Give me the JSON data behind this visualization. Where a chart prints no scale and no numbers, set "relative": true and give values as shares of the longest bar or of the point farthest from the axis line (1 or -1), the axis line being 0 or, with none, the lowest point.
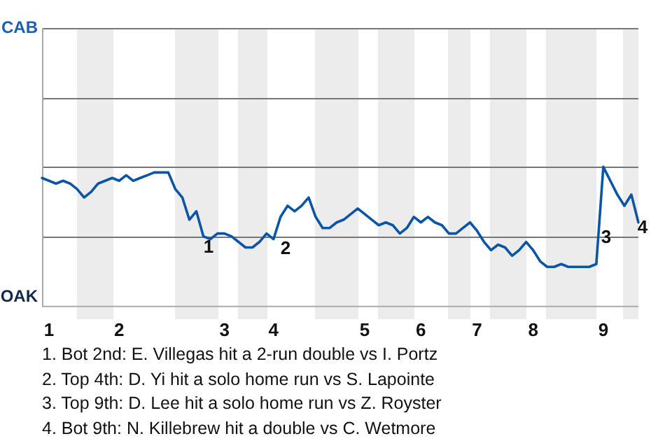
{
  "chart_data": {
    "type": "line",
    "relative": true,
    "categories": [
      null,
      "1",
      null,
      null,
      null,
      null,
      null,
      null,
      null,
      null,
      null,
      "2",
      null,
      null,
      null,
      null,
      null,
      null,
      null,
      null,
      null,
      null,
      null,
      null,
      null,
      null,
      "3",
      null,
      null,
      null,
      null,
      null,
      null,
      "4",
      null,
      null,
      null,
      null,
      null,
      null,
      null,
      null,
      null,
      null,
      null,
      null,
      "5",
      null,
      null,
      null,
      null,
      null,
      null,
      null,
      "6",
      null,
      null,
      null,
      null,
      null,
      null,
      null,
      "7",
      null,
      null,
      null,
      null,
      null,
      null,
      null,
      "8",
      null,
      null,
      null,
      null,
      null,
      null,
      null,
      null,
      null,
      "9",
      null,
      null,
      null,
      null,
      null
    ],
    "ref_lines": [
      {
        "axis": "y",
        "value": 0.5,
        "color": "#777777"
      },
      {
        "axis": "y",
        "value": 1,
        "color": "#777777"
      },
      {
        "axis": "y",
        "value": 1.5,
        "color": "#777777"
      },
      {
        "axis": "y",
        "value": 2,
        "color": "#777777"
      }
    ],
    "legend": false,
    "marker": "none",
    "series": [
      {
        "color": "#0b55a6",
        "values": [
          0.92,
          0.9,
          0.88,
          0.9,
          0.88,
          0.84,
          0.78,
          0.82,
          0.88,
          0.9,
          0.92,
          0.9,
          0.94,
          0.9,
          0.92,
          0.94,
          0.96,
          0.96,
          0.96,
          0.84,
          0.78,
          0.62,
          0.68,
          0.5,
          0.48,
          0.52,
          0.52,
          0.5,
          0.46,
          0.42,
          0.42,
          0.46,
          0.52,
          0.48,
          0.64,
          0.72,
          0.68,
          0.72,
          0.78,
          0.64,
          0.56,
          0.56,
          0.6,
          0.62,
          0.66,
          0.7,
          0.66,
          0.62,
          0.58,
          0.6,
          0.58,
          0.52,
          0.56,
          0.64,
          0.6,
          0.64,
          0.6,
          0.58,
          0.52,
          0.52,
          0.56,
          0.6,
          0.54,
          0.46,
          0.4,
          0.44,
          0.42,
          0.36,
          0.4,
          0.46,
          0.4,
          0.32,
          0.28,
          0.28,
          0.3,
          0.28,
          0.28,
          0.28,
          0.28,
          0.3,
          1.0,
          0.9,
          0.8,
          0.72,
          0.8,
          0.6
        ]
      }
    ],
    "annotations": [
      "CAB",
      "OAK",
      "1",
      "2",
      "3",
      "4",
      "1. Bot 2nd: E. Villegas hit a 2-run double vs I. Portz",
      "2. Top 4th: D. Yi hit a solo home run vs S. Lapointe",
      "3. Top 9th: D. Lee hit a solo home run vs Z. Royster",
      "4. Bot 9th: N. Killebrew hit a double vs C. Wetmore"
    ]
  }
}
